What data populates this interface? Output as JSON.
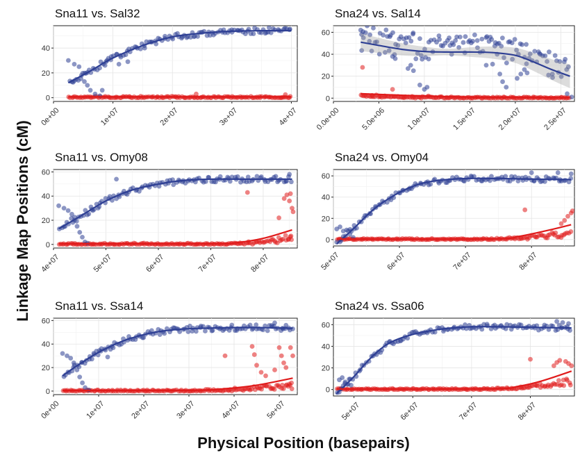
{
  "figure": {
    "ylabel": "Linkage Map Positions (cM)",
    "xlabel": "Physical Position (basepairs)"
  },
  "colors": {
    "blue": "#2e3f94",
    "red": "#e01b1b",
    "band": "#9a9a9a"
  },
  "chart_data": [
    {
      "type": "scatter",
      "title": "Sna11 vs. Sal32",
      "x_ticks": [
        0,
        10000000,
        20000000,
        30000000,
        40000000
      ],
      "x_tick_labels": [
        "0e+00",
        "1e+07",
        "2e+07",
        "3e+07",
        "4e+07"
      ],
      "xlim": [
        0,
        41000000
      ],
      "y_ticks": [
        0,
        20,
        40
      ],
      "ylim": [
        -3,
        58
      ],
      "show_band": false,
      "trend_blue": [
        [
          2500000,
          12
        ],
        [
          6000000,
          21
        ],
        [
          10000000,
          32
        ],
        [
          15000000,
          42
        ],
        [
          20000000,
          49
        ],
        [
          25000000,
          52
        ],
        [
          30000000,
          53.5
        ],
        [
          35000000,
          54
        ],
        [
          40000000,
          54
        ]
      ],
      "trend_red": [
        [
          2500000,
          0.7
        ],
        [
          40000000,
          0.7
        ]
      ],
      "blue_outliers": [
        [
          2500000,
          30
        ],
        [
          3500000,
          27
        ],
        [
          4300000,
          25
        ],
        [
          4700000,
          18
        ],
        [
          5200000,
          13
        ],
        [
          5700000,
          10
        ],
        [
          6200000,
          6
        ],
        [
          7000000,
          3
        ],
        [
          7800000,
          1.5
        ],
        [
          8200000,
          6
        ],
        [
          9000000,
          30
        ],
        [
          11000000,
          27
        ],
        [
          12500000,
          29
        ]
      ],
      "red_outliers": [
        [
          24000000,
          3
        ],
        [
          39000000,
          2.5
        ]
      ]
    },
    {
      "type": "scatter",
      "title": "Sna24 vs. Sal14",
      "x_ticks": [
        0,
        5000000,
        10000000,
        15000000,
        20000000,
        25000000
      ],
      "x_tick_labels": [
        "0.0e+00",
        "5.0e+06",
        "1.0e+07",
        "1.5e+07",
        "2.0e+07",
        "2.5e+07"
      ],
      "xlim": [
        0,
        26500000
      ],
      "y_ticks": [
        0,
        20,
        40,
        60
      ],
      "ylim": [
        -3,
        66
      ],
      "show_band": true,
      "trend_blue": [
        [
          3000000,
          51
        ],
        [
          5000000,
          48
        ],
        [
          7500000,
          44.5
        ],
        [
          10000000,
          42.5
        ],
        [
          12500000,
          42
        ],
        [
          15000000,
          42
        ],
        [
          17500000,
          41.5
        ],
        [
          20000000,
          39
        ],
        [
          22000000,
          33
        ],
        [
          24000000,
          26
        ],
        [
          26000000,
          20
        ]
      ],
      "trend_red": [
        [
          3000000,
          4
        ],
        [
          8000000,
          2.5
        ],
        [
          13000000,
          1.3
        ],
        [
          18000000,
          0.8
        ],
        [
          26000000,
          0.5
        ]
      ],
      "blue_outliers": [
        [
          3000000,
          62
        ],
        [
          3100000,
          58
        ],
        [
          3300000,
          55
        ],
        [
          6200000,
          56
        ],
        [
          6500000,
          38
        ],
        [
          6800000,
          36
        ],
        [
          8200000,
          27
        ],
        [
          8500000,
          30
        ],
        [
          8800000,
          25
        ],
        [
          9500000,
          12
        ],
        [
          10000000,
          8
        ],
        [
          10300000,
          10
        ],
        [
          13000000,
          40
        ],
        [
          16800000,
          30
        ],
        [
          17500000,
          31
        ],
        [
          18000000,
          40
        ],
        [
          18300000,
          22
        ],
        [
          18600000,
          15
        ],
        [
          19000000,
          10
        ],
        [
          20200000,
          18
        ],
        [
          20600000,
          22
        ],
        [
          21000000,
          26
        ],
        [
          21300000,
          23
        ],
        [
          25700000,
          4
        ],
        [
          26200000,
          1
        ]
      ],
      "red_outliers": [
        [
          3200000,
          28
        ],
        [
          6500000,
          8
        ]
      ]
    },
    {
      "type": "scatter",
      "title": "Sna11 vs. Omy08",
      "x_ticks": [
        40000000,
        50000000,
        60000000,
        70000000,
        80000000
      ],
      "x_tick_labels": [
        "4e+07",
        "5e+07",
        "6e+07",
        "7e+07",
        "8e+07"
      ],
      "xlim": [
        40000000,
        86500000
      ],
      "y_ticks": [
        0,
        20,
        40,
        60
      ],
      "ylim": [
        -3,
        62
      ],
      "show_band": false,
      "trend_blue": [
        [
          41000000,
          13
        ],
        [
          45000000,
          23
        ],
        [
          50000000,
          36
        ],
        [
          55000000,
          45
        ],
        [
          60000000,
          50
        ],
        [
          65000000,
          53
        ],
        [
          70000000,
          54
        ],
        [
          75000000,
          54
        ],
        [
          80000000,
          54
        ],
        [
          85500000,
          54
        ]
      ],
      "trend_red": [
        [
          41000000,
          0.5
        ],
        [
          70000000,
          0.6
        ],
        [
          75000000,
          1.5
        ],
        [
          80000000,
          5
        ],
        [
          85500000,
          12
        ]
      ],
      "blue_outliers": [
        [
          41000000,
          32
        ],
        [
          42000000,
          30
        ],
        [
          42800000,
          28
        ],
        [
          43500000,
          25
        ],
        [
          44000000,
          20
        ],
        [
          44500000,
          15
        ],
        [
          45000000,
          10
        ],
        [
          45500000,
          6
        ],
        [
          46000000,
          2
        ],
        [
          46500000,
          1
        ],
        [
          47500000,
          28
        ],
        [
          48500000,
          30
        ],
        [
          52000000,
          54
        ],
        [
          85000000,
          58
        ]
      ],
      "red_outliers": [
        [
          77000000,
          43
        ],
        [
          83000000,
          22
        ],
        [
          84000000,
          38
        ],
        [
          84500000,
          41
        ],
        [
          85000000,
          36
        ],
        [
          85200000,
          42
        ],
        [
          85500000,
          30
        ],
        [
          85700000,
          27
        ],
        [
          85300000,
          7
        ],
        [
          84800000,
          4
        ]
      ]
    },
    {
      "type": "scatter",
      "title": "Sna24 vs. Omy04",
      "x_ticks": [
        50000000,
        60000000,
        70000000,
        80000000
      ],
      "x_tick_labels": [
        "5e+07",
        "6e+07",
        "7e+07",
        "8e+07"
      ],
      "xlim": [
        50000000,
        86500000
      ],
      "y_ticks": [
        0,
        20,
        40,
        60
      ],
      "ylim": [
        -6,
        66
      ],
      "show_band": false,
      "trend_blue": [
        [
          50500000,
          -4
        ],
        [
          53000000,
          10
        ],
        [
          56000000,
          28
        ],
        [
          59000000,
          41
        ],
        [
          62000000,
          50
        ],
        [
          65000000,
          55
        ],
        [
          70000000,
          57.5
        ],
        [
          75000000,
          57.5
        ],
        [
          80000000,
          57
        ],
        [
          86000000,
          56.5
        ]
      ],
      "trend_red": [
        [
          50500000,
          0.5
        ],
        [
          74000000,
          0.6
        ],
        [
          78000000,
          3
        ],
        [
          82000000,
          8
        ],
        [
          86000000,
          14
        ]
      ],
      "blue_outliers": [
        [
          50500000,
          10
        ],
        [
          51000000,
          12
        ],
        [
          51500000,
          8
        ],
        [
          52000000,
          9
        ],
        [
          52500000,
          5
        ],
        [
          53000000,
          2
        ],
        [
          80000000,
          63
        ],
        [
          84000000,
          63
        ],
        [
          86000000,
          62
        ]
      ],
      "red_outliers": [
        [
          79000000,
          28
        ],
        [
          84500000,
          15
        ],
        [
          85000000,
          18
        ],
        [
          85500000,
          22
        ],
        [
          86000000,
          25
        ],
        [
          86200000,
          27
        ]
      ]
    },
    {
      "type": "scatter",
      "title": "Sna11 vs. Ssa14",
      "x_ticks": [
        0,
        10000000,
        20000000,
        30000000,
        40000000,
        50000000
      ],
      "x_tick_labels": [
        "0e+00",
        "1e+07",
        "2e+07",
        "3e+07",
        "4e+07",
        "5e+07"
      ],
      "xlim": [
        0,
        54000000
      ],
      "y_ticks": [
        0,
        20,
        40,
        60
      ],
      "ylim": [
        -3,
        62
      ],
      "show_band": false,
      "trend_blue": [
        [
          2000000,
          13
        ],
        [
          5000000,
          21
        ],
        [
          10000000,
          33
        ],
        [
          15000000,
          42
        ],
        [
          20000000,
          48
        ],
        [
          25000000,
          51.5
        ],
        [
          30000000,
          53
        ],
        [
          40000000,
          54
        ],
        [
          45000000,
          54
        ],
        [
          53000000,
          53.5
        ]
      ],
      "trend_red": [
        [
          2000000,
          0.5
        ],
        [
          30000000,
          0.6
        ],
        [
          38000000,
          2
        ],
        [
          45000000,
          5
        ],
        [
          53000000,
          11
        ]
      ],
      "blue_outliers": [
        [
          2000000,
          32
        ],
        [
          3000000,
          30
        ],
        [
          3800000,
          28
        ],
        [
          4500000,
          24
        ],
        [
          5200000,
          18
        ],
        [
          5800000,
          12
        ],
        [
          6400000,
          7
        ],
        [
          7000000,
          3
        ],
        [
          7800000,
          1
        ],
        [
          9000000,
          31
        ],
        [
          10500000,
          34
        ],
        [
          12000000,
          29
        ],
        [
          49000000,
          58
        ],
        [
          51500000,
          56
        ]
      ],
      "red_outliers": [
        [
          38000000,
          30
        ],
        [
          44000000,
          38
        ],
        [
          44500000,
          31
        ],
        [
          45000000,
          22
        ],
        [
          46000000,
          16
        ],
        [
          47000000,
          13
        ],
        [
          49000000,
          18
        ],
        [
          50000000,
          37
        ],
        [
          50500000,
          30
        ],
        [
          51000000,
          24
        ],
        [
          51500000,
          20
        ],
        [
          52500000,
          37
        ],
        [
          53000000,
          30
        ],
        [
          52000000,
          4
        ],
        [
          52800000,
          2
        ]
      ]
    },
    {
      "type": "scatter",
      "title": "Sna24 vs. Ssa06",
      "x_ticks": [
        50000000,
        60000000,
        70000000,
        80000000
      ],
      "x_tick_labels": [
        "5e+07",
        "6e+07",
        "7e+07",
        "8e+07"
      ],
      "xlim": [
        46500000,
        87500000
      ],
      "y_ticks": [
        0,
        20,
        40,
        60
      ],
      "ylim": [
        -6,
        66
      ],
      "show_band": false,
      "trend_blue": [
        [
          47000000,
          -4
        ],
        [
          50000000,
          12
        ],
        [
          53000000,
          30
        ],
        [
          56000000,
          43
        ],
        [
          60000000,
          51
        ],
        [
          65000000,
          56
        ],
        [
          70000000,
          58
        ],
        [
          75000000,
          58
        ],
        [
          80000000,
          57.5
        ],
        [
          87000000,
          57
        ]
      ],
      "trend_red": [
        [
          47000000,
          0.5
        ],
        [
          73000000,
          0.6
        ],
        [
          78000000,
          3
        ],
        [
          82000000,
          8
        ],
        [
          87000000,
          17
        ]
      ],
      "blue_outliers": [
        [
          47500000,
          9
        ],
        [
          48000000,
          11
        ],
        [
          48500000,
          7
        ],
        [
          49000000,
          5
        ],
        [
          49500000,
          4
        ],
        [
          84500000,
          63
        ],
        [
          85500000,
          62
        ],
        [
          86500000,
          61
        ]
      ],
      "red_outliers": [
        [
          80000000,
          28
        ],
        [
          84000000,
          22
        ],
        [
          84500000,
          25
        ],
        [
          85000000,
          27
        ],
        [
          86000000,
          26
        ],
        [
          86500000,
          24
        ],
        [
          87000000,
          22
        ]
      ]
    }
  ]
}
